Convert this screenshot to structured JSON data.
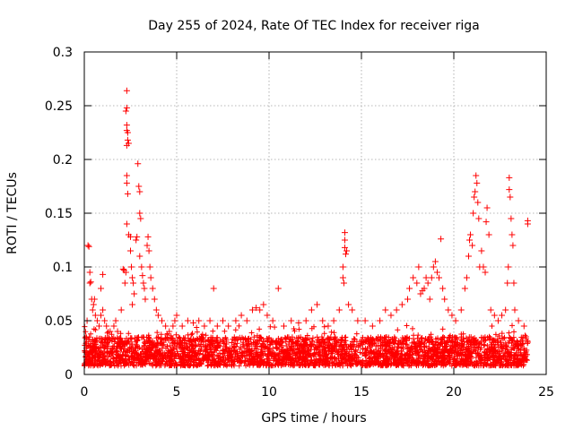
{
  "chart_data": {
    "type": "scatter",
    "title": "Day 255 of 2024, Rate Of TEC Index for receiver riga",
    "xlabel": "GPS time / hours",
    "ylabel": "ROTI / TECUs",
    "xlim": [
      0,
      25
    ],
    "ylim": [
      0,
      0.3
    ],
    "xticks": [
      0,
      5,
      10,
      15,
      20,
      25
    ],
    "xtick_labels": [
      "0",
      "5",
      "10",
      "15",
      "20",
      "25"
    ],
    "yticks": [
      0,
      0.05,
      0.1,
      0.15,
      0.2,
      0.25,
      0.3
    ],
    "ytick_labels": [
      "0",
      "0.05",
      "0.1",
      "0.15",
      "0.2",
      "0.25",
      "0.3"
    ],
    "grid": true,
    "marker": "+",
    "color": "#ff0000",
    "background_band": {
      "x_range": [
        0,
        24
      ],
      "y_range": [
        0.008,
        0.035
      ],
      "note": "dense cloud of points, most values 0.01-0.03"
    },
    "series": [
      {
        "name": "ROTI",
        "points": [
          [
            0.1,
            0.035
          ],
          [
            0.15,
            0.05
          ],
          [
            0.2,
            0.12
          ],
          [
            0.25,
            0.119
          ],
          [
            0.3,
            0.085
          ],
          [
            0.35,
            0.086
          ],
          [
            0.3,
            0.095
          ],
          [
            0.4,
            0.07
          ],
          [
            0.45,
            0.06
          ],
          [
            0.5,
            0.065
          ],
          [
            0.55,
            0.07
          ],
          [
            0.6,
            0.055
          ],
          [
            0.7,
            0.05
          ],
          [
            0.8,
            0.045
          ],
          [
            0.9,
            0.055
          ],
          [
            1.0,
            0.06
          ],
          [
            1.1,
            0.05
          ],
          [
            0.9,
            0.08
          ],
          [
            1.0,
            0.093
          ],
          [
            1.2,
            0.045
          ],
          [
            1.4,
            0.04
          ],
          [
            1.6,
            0.045
          ],
          [
            1.7,
            0.05
          ],
          [
            1.8,
            0.04
          ],
          [
            2.0,
            0.06
          ],
          [
            2.1,
            0.098
          ],
          [
            2.15,
            0.097
          ],
          [
            2.2,
            0.085
          ],
          [
            2.25,
            0.095
          ],
          [
            2.3,
            0.264
          ],
          [
            2.3,
            0.248
          ],
          [
            2.25,
            0.245
          ],
          [
            2.3,
            0.232
          ],
          [
            2.3,
            0.227
          ],
          [
            2.35,
            0.225
          ],
          [
            2.35,
            0.218
          ],
          [
            2.4,
            0.215
          ],
          [
            2.3,
            0.213
          ],
          [
            2.3,
            0.185
          ],
          [
            2.3,
            0.178
          ],
          [
            2.35,
            0.168
          ],
          [
            2.3,
            0.14
          ],
          [
            2.4,
            0.13
          ],
          [
            2.5,
            0.128
          ],
          [
            2.5,
            0.115
          ],
          [
            2.55,
            0.1
          ],
          [
            2.6,
            0.09
          ],
          [
            2.65,
            0.085
          ],
          [
            2.7,
            0.075
          ],
          [
            2.6,
            0.065
          ],
          [
            2.8,
            0.125
          ],
          [
            2.85,
            0.128
          ],
          [
            2.9,
            0.196
          ],
          [
            2.95,
            0.175
          ],
          [
            3.0,
            0.17
          ],
          [
            3.0,
            0.15
          ],
          [
            3.05,
            0.145
          ],
          [
            3.0,
            0.11
          ],
          [
            3.1,
            0.1
          ],
          [
            3.15,
            0.092
          ],
          [
            3.2,
            0.085
          ],
          [
            3.25,
            0.08
          ],
          [
            3.3,
            0.07
          ],
          [
            3.4,
            0.12
          ],
          [
            3.45,
            0.128
          ],
          [
            3.5,
            0.115
          ],
          [
            3.55,
            0.1
          ],
          [
            3.6,
            0.09
          ],
          [
            3.7,
            0.08
          ],
          [
            3.8,
            0.07
          ],
          [
            3.9,
            0.06
          ],
          [
            4.0,
            0.055
          ],
          [
            4.2,
            0.05
          ],
          [
            4.4,
            0.045
          ],
          [
            4.6,
            0.04
          ],
          [
            4.8,
            0.045
          ],
          [
            4.9,
            0.05
          ],
          [
            5.0,
            0.055
          ],
          [
            5.3,
            0.045
          ],
          [
            5.6,
            0.05
          ],
          [
            5.9,
            0.048
          ],
          [
            6.2,
            0.05
          ],
          [
            6.5,
            0.045
          ],
          [
            6.8,
            0.05
          ],
          [
            7.0,
            0.08
          ],
          [
            7.2,
            0.045
          ],
          [
            7.5,
            0.05
          ],
          [
            7.8,
            0.045
          ],
          [
            8.2,
            0.05
          ],
          [
            8.5,
            0.055
          ],
          [
            8.8,
            0.05
          ],
          [
            9.1,
            0.06
          ],
          [
            9.3,
            0.062
          ],
          [
            9.5,
            0.06
          ],
          [
            9.7,
            0.065
          ],
          [
            9.9,
            0.055
          ],
          [
            10.2,
            0.05
          ],
          [
            10.5,
            0.08
          ],
          [
            10.8,
            0.045
          ],
          [
            11.2,
            0.05
          ],
          [
            11.6,
            0.048
          ],
          [
            12.0,
            0.05
          ],
          [
            12.3,
            0.06
          ],
          [
            12.6,
            0.065
          ],
          [
            12.9,
            0.05
          ],
          [
            13.2,
            0.045
          ],
          [
            13.5,
            0.05
          ],
          [
            13.8,
            0.06
          ],
          [
            14.0,
            0.1
          ],
          [
            14.0,
            0.09
          ],
          [
            14.05,
            0.085
          ],
          [
            14.1,
            0.132
          ],
          [
            14.1,
            0.125
          ],
          [
            14.1,
            0.118
          ],
          [
            14.15,
            0.112
          ],
          [
            14.2,
            0.115
          ],
          [
            14.3,
            0.065
          ],
          [
            14.5,
            0.06
          ],
          [
            14.8,
            0.05
          ],
          [
            15.2,
            0.05
          ],
          [
            15.6,
            0.045
          ],
          [
            16.0,
            0.05
          ],
          [
            16.3,
            0.06
          ],
          [
            16.6,
            0.055
          ],
          [
            16.9,
            0.06
          ],
          [
            17.2,
            0.065
          ],
          [
            17.5,
            0.07
          ],
          [
            17.6,
            0.08
          ],
          [
            17.8,
            0.09
          ],
          [
            18.0,
            0.085
          ],
          [
            18.1,
            0.1
          ],
          [
            18.2,
            0.075
          ],
          [
            18.3,
            0.078
          ],
          [
            18.4,
            0.08
          ],
          [
            18.5,
            0.09
          ],
          [
            18.6,
            0.085
          ],
          [
            18.7,
            0.07
          ],
          [
            18.8,
            0.09
          ],
          [
            18.9,
            0.1
          ],
          [
            19.0,
            0.105
          ],
          [
            19.1,
            0.095
          ],
          [
            19.2,
            0.09
          ],
          [
            19.3,
            0.126
          ],
          [
            19.4,
            0.08
          ],
          [
            19.5,
            0.07
          ],
          [
            19.7,
            0.06
          ],
          [
            19.9,
            0.055
          ],
          [
            20.1,
            0.05
          ],
          [
            20.4,
            0.06
          ],
          [
            20.6,
            0.08
          ],
          [
            20.7,
            0.09
          ],
          [
            20.8,
            0.11
          ],
          [
            20.85,
            0.125
          ],
          [
            20.9,
            0.13
          ],
          [
            21.0,
            0.12
          ],
          [
            21.05,
            0.15
          ],
          [
            21.1,
            0.165
          ],
          [
            21.15,
            0.17
          ],
          [
            21.2,
            0.185
          ],
          [
            21.25,
            0.178
          ],
          [
            21.3,
            0.16
          ],
          [
            21.35,
            0.145
          ],
          [
            21.4,
            0.1
          ],
          [
            21.5,
            0.115
          ],
          [
            21.6,
            0.1
          ],
          [
            21.7,
            0.095
          ],
          [
            21.75,
            0.142
          ],
          [
            21.8,
            0.155
          ],
          [
            21.9,
            0.13
          ],
          [
            22.0,
            0.06
          ],
          [
            22.2,
            0.055
          ],
          [
            22.4,
            0.05
          ],
          [
            22.6,
            0.055
          ],
          [
            22.8,
            0.06
          ],
          [
            22.9,
            0.085
          ],
          [
            22.95,
            0.1
          ],
          [
            23.0,
            0.183
          ],
          [
            23.0,
            0.172
          ],
          [
            23.05,
            0.165
          ],
          [
            23.1,
            0.145
          ],
          [
            23.15,
            0.13
          ],
          [
            23.2,
            0.12
          ],
          [
            23.25,
            0.085
          ],
          [
            23.3,
            0.06
          ],
          [
            23.5,
            0.05
          ],
          [
            23.8,
            0.045
          ],
          [
            24.0,
            0.14
          ],
          [
            24.0,
            0.143
          ],
          [
            23.9,
            0.035
          ],
          [
            24.0,
            0.03
          ]
        ]
      }
    ]
  }
}
